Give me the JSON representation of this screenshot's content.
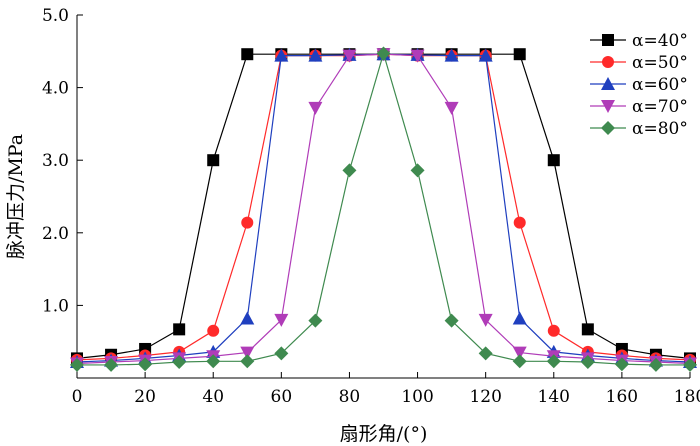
{
  "chart_data": {
    "type": "line",
    "title": "",
    "xlabel": "扇形角/(°)",
    "ylabel": "脉冲压力/MPa",
    "xlim": [
      0,
      180
    ],
    "ylim": [
      0,
      5.0
    ],
    "x_ticks": [
      0,
      20,
      40,
      60,
      80,
      100,
      120,
      140,
      160,
      180
    ],
    "y_ticks": [
      1.0,
      2.0,
      3.0,
      4.0,
      5.0
    ],
    "x_tick_labels": [
      "0",
      "20",
      "40",
      "60",
      "80",
      "100",
      "120",
      "140",
      "160",
      "180"
    ],
    "y_tick_labels": [
      "1.0",
      "2.0",
      "3.0",
      "4.0",
      "5.0"
    ],
    "grid": false,
    "legend_position": "top-right",
    "x": [
      0,
      10,
      20,
      30,
      40,
      50,
      60,
      70,
      80,
      90,
      100,
      110,
      120,
      130,
      140,
      150,
      160,
      170,
      180
    ],
    "series": [
      {
        "name": "α=40°",
        "color": "#000000",
        "marker": "square",
        "values": [
          0.27,
          0.32,
          0.4,
          0.67,
          3.0,
          4.46,
          4.46,
          4.46,
          4.46,
          4.46,
          4.46,
          4.46,
          4.46,
          4.46,
          3.0,
          0.67,
          0.4,
          0.32,
          0.27
        ]
      },
      {
        "name": "α=50°",
        "color": "#ff2a2a",
        "marker": "circle",
        "values": [
          0.25,
          0.27,
          0.31,
          0.36,
          0.65,
          2.14,
          4.44,
          4.44,
          4.44,
          4.46,
          4.44,
          4.44,
          4.44,
          2.14,
          0.65,
          0.36,
          0.31,
          0.27,
          0.25
        ]
      },
      {
        "name": "α=60°",
        "color": "#1f3fbf",
        "marker": "triangle-up",
        "values": [
          0.22,
          0.24,
          0.27,
          0.31,
          0.36,
          0.82,
          4.44,
          4.44,
          4.45,
          4.46,
          4.45,
          4.44,
          4.44,
          0.82,
          0.36,
          0.31,
          0.27,
          0.24,
          0.22
        ]
      },
      {
        "name": "α=70°",
        "color": "#b03cb8",
        "marker": "triangle-down",
        "values": [
          0.2,
          0.22,
          0.24,
          0.27,
          0.3,
          0.35,
          0.8,
          3.72,
          4.44,
          4.46,
          4.44,
          3.72,
          0.8,
          0.35,
          0.3,
          0.27,
          0.24,
          0.22,
          0.2
        ]
      },
      {
        "name": "α=80°",
        "color": "#3f8a4f",
        "marker": "diamond",
        "values": [
          0.18,
          0.18,
          0.19,
          0.22,
          0.23,
          0.23,
          0.34,
          0.79,
          2.86,
          4.47,
          2.86,
          0.79,
          0.34,
          0.23,
          0.23,
          0.22,
          0.19,
          0.18,
          0.18
        ]
      }
    ]
  }
}
